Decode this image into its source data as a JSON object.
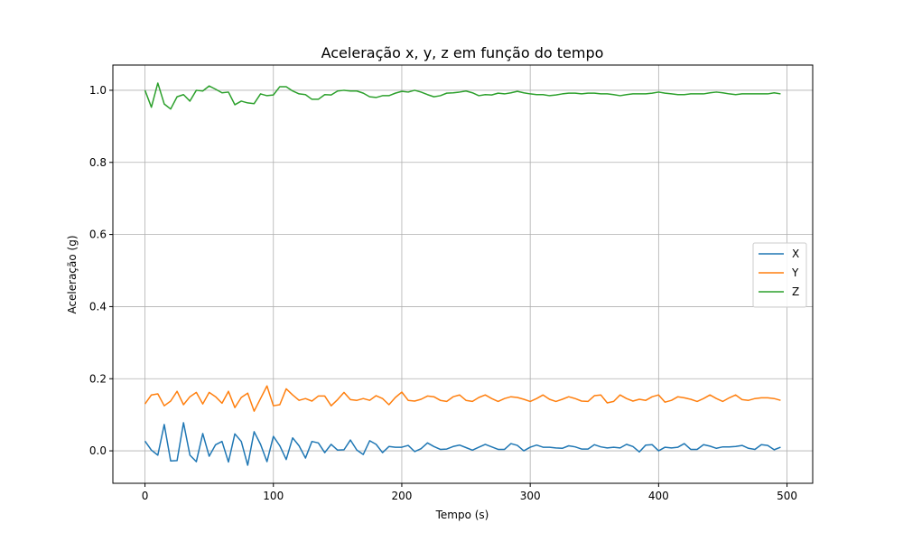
{
  "chart_data": {
    "type": "line",
    "title": "Aceleração x, y, z em função do tempo",
    "xlabel": "Tempo (s)",
    "ylabel": "Aceleração (g)",
    "xlim": [
      -25,
      520
    ],
    "ylim": [
      -0.09,
      1.07
    ],
    "xticks": [
      0,
      100,
      200,
      300,
      400,
      500
    ],
    "yticks": [
      0.0,
      0.2,
      0.4,
      0.6,
      0.8,
      1.0
    ],
    "xtick_labels": [
      "0",
      "100",
      "200",
      "300",
      "400",
      "500"
    ],
    "ytick_labels": [
      "0.0",
      "0.2",
      "0.4",
      "0.6",
      "0.8",
      "1.0"
    ],
    "grid": true,
    "legend_position": "center-right",
    "x": [
      0,
      5,
      10,
      15,
      20,
      25,
      30,
      35,
      40,
      45,
      50,
      55,
      60,
      65,
      70,
      75,
      80,
      85,
      90,
      95,
      100,
      105,
      110,
      115,
      120,
      125,
      130,
      135,
      140,
      145,
      150,
      155,
      160,
      165,
      170,
      175,
      180,
      185,
      190,
      195,
      200,
      205,
      210,
      215,
      220,
      225,
      230,
      235,
      240,
      245,
      250,
      255,
      260,
      265,
      270,
      275,
      280,
      285,
      290,
      295,
      300,
      305,
      310,
      315,
      320,
      325,
      330,
      335,
      340,
      345,
      350,
      355,
      360,
      365,
      370,
      375,
      380,
      385,
      390,
      395,
      400,
      405,
      410,
      415,
      420,
      425,
      430,
      435,
      440,
      445,
      450,
      455,
      460,
      465,
      470,
      475,
      480,
      485,
      490,
      495
    ],
    "series": [
      {
        "name": "X",
        "color": "#1f77b4",
        "values": [
          0.027,
          0.002,
          -0.012,
          0.073,
          -0.028,
          -0.027,
          0.078,
          -0.012,
          -0.03,
          0.048,
          -0.015,
          0.017,
          0.026,
          -0.031,
          0.047,
          0.026,
          -0.04,
          0.053,
          0.018,
          -0.03,
          0.04,
          0.014,
          -0.024,
          0.036,
          0.014,
          -0.02,
          0.026,
          0.022,
          -0.005,
          0.018,
          0.002,
          0.003,
          0.03,
          0.002,
          -0.01,
          0.028,
          0.018,
          -0.005,
          0.012,
          0.01,
          0.01,
          0.015,
          -0.002,
          0.006,
          0.022,
          0.012,
          0.004,
          0.005,
          0.012,
          0.016,
          0.009,
          0.002,
          0.01,
          0.018,
          0.011,
          0.004,
          0.004,
          0.02,
          0.015,
          0.0,
          0.01,
          0.016,
          0.01,
          0.01,
          0.008,
          0.007,
          0.014,
          0.011,
          0.005,
          0.005,
          0.017,
          0.011,
          0.008,
          0.01,
          0.008,
          0.018,
          0.012,
          -0.003,
          0.016,
          0.017,
          0.0,
          0.01,
          0.008,
          0.01,
          0.02,
          0.004,
          0.004,
          0.017,
          0.013,
          0.007,
          0.011,
          0.011,
          0.012,
          0.015,
          0.007,
          0.004,
          0.017,
          0.015,
          0.003,
          0.01
        ]
      },
      {
        "name": "Y",
        "color": "#ff7f0e",
        "values": [
          0.13,
          0.155,
          0.158,
          0.125,
          0.138,
          0.165,
          0.128,
          0.15,
          0.162,
          0.13,
          0.162,
          0.15,
          0.132,
          0.165,
          0.12,
          0.148,
          0.16,
          0.11,
          0.145,
          0.18,
          0.125,
          0.128,
          0.172,
          0.155,
          0.14,
          0.145,
          0.138,
          0.152,
          0.152,
          0.125,
          0.142,
          0.162,
          0.142,
          0.14,
          0.145,
          0.14,
          0.153,
          0.145,
          0.128,
          0.148,
          0.163,
          0.14,
          0.138,
          0.143,
          0.152,
          0.15,
          0.14,
          0.137,
          0.15,
          0.155,
          0.14,
          0.137,
          0.148,
          0.155,
          0.145,
          0.137,
          0.145,
          0.15,
          0.148,
          0.143,
          0.137,
          0.145,
          0.155,
          0.143,
          0.137,
          0.143,
          0.15,
          0.145,
          0.138,
          0.137,
          0.153,
          0.155,
          0.133,
          0.137,
          0.155,
          0.145,
          0.138,
          0.143,
          0.14,
          0.15,
          0.155,
          0.135,
          0.14,
          0.15,
          0.147,
          0.143,
          0.137,
          0.145,
          0.155,
          0.145,
          0.137,
          0.147,
          0.155,
          0.142,
          0.14,
          0.145,
          0.147,
          0.147,
          0.145,
          0.14
        ]
      },
      {
        "name": "Z",
        "color": "#2ca02c",
        "values": [
          1.0,
          0.953,
          1.02,
          0.962,
          0.948,
          0.982,
          0.988,
          0.97,
          1.0,
          0.998,
          1.012,
          1.003,
          0.993,
          0.995,
          0.96,
          0.97,
          0.965,
          0.963,
          0.99,
          0.985,
          0.987,
          1.01,
          1.01,
          0.998,
          0.99,
          0.988,
          0.975,
          0.975,
          0.988,
          0.987,
          0.998,
          1.0,
          0.998,
          0.998,
          0.992,
          0.982,
          0.98,
          0.985,
          0.985,
          0.992,
          0.997,
          0.995,
          1.0,
          0.995,
          0.988,
          0.982,
          0.985,
          0.992,
          0.993,
          0.995,
          0.998,
          0.993,
          0.985,
          0.988,
          0.987,
          0.992,
          0.99,
          0.993,
          0.997,
          0.993,
          0.99,
          0.988,
          0.988,
          0.985,
          0.987,
          0.99,
          0.992,
          0.992,
          0.99,
          0.992,
          0.992,
          0.99,
          0.99,
          0.988,
          0.985,
          0.988,
          0.99,
          0.99,
          0.99,
          0.992,
          0.995,
          0.992,
          0.99,
          0.988,
          0.988,
          0.99,
          0.99,
          0.99,
          0.993,
          0.995,
          0.993,
          0.99,
          0.988,
          0.99,
          0.99,
          0.99,
          0.99,
          0.99,
          0.993,
          0.99
        ]
      }
    ]
  }
}
